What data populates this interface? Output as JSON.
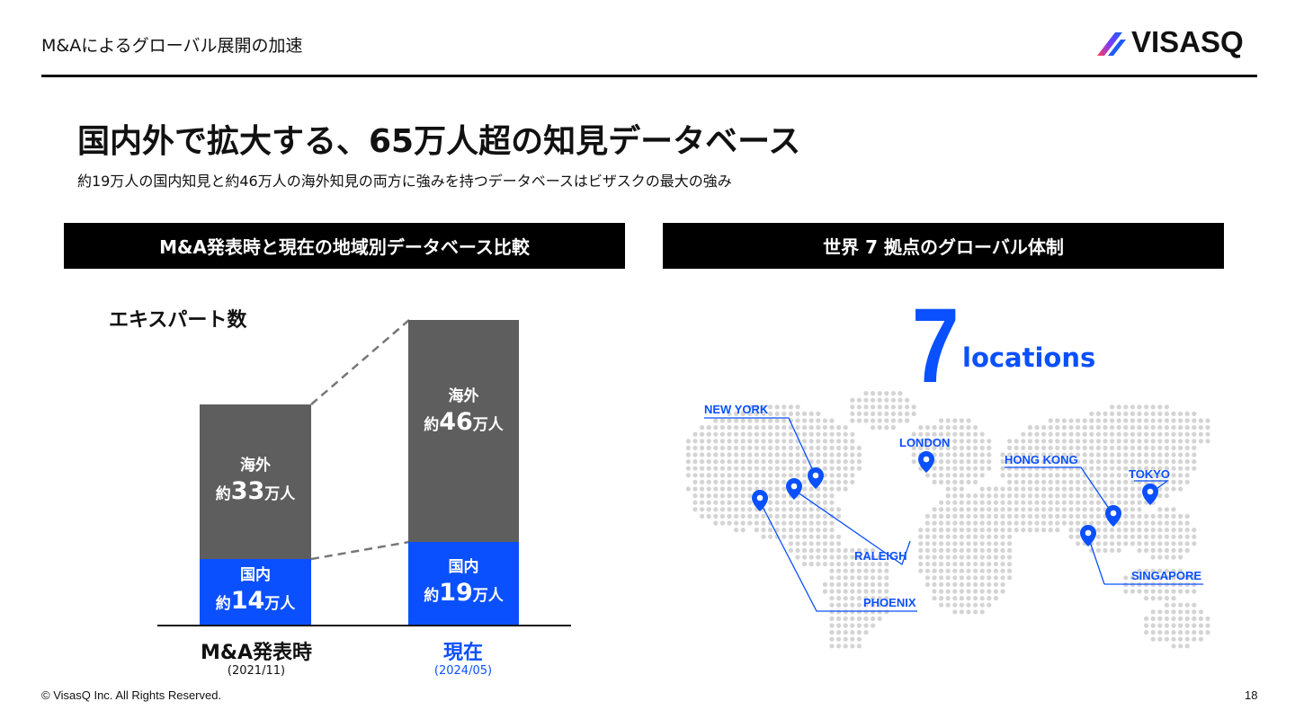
{
  "header": {
    "page_title": "M&Aによるグローバル展開の加速",
    "logo_text": "VISASQ"
  },
  "headline": "国内外で拡大する、65万人超の知見データベース",
  "subheadline": "約19万人の国内知見と約46万人の海外知見の両方に強みを持つデータベースはビザスクの最大の強み",
  "left_section": {
    "title": "M&A発表時と現在の地域別データベース比較",
    "chart_label": "エキスパート数",
    "bars": [
      {
        "category": "M&A発表時",
        "date": "(2021/11)",
        "domestic": {
          "name": "国内",
          "prefix": "約",
          "number": "14",
          "unit": "万人",
          "value": 14
        },
        "overseas": {
          "name": "海外",
          "prefix": "約",
          "number": "33",
          "unit": "万人",
          "value": 33
        }
      },
      {
        "category": "現在",
        "date": "(2024/05)",
        "domestic": {
          "name": "国内",
          "prefix": "約",
          "number": "19",
          "unit": "万人",
          "value": 19
        },
        "overseas": {
          "name": "海外",
          "prefix": "約",
          "number": "46",
          "unit": "万人",
          "value": 46
        }
      }
    ]
  },
  "chart_data": {
    "type": "bar",
    "stacked": true,
    "title": "エキスパート数",
    "categories": [
      "M&A発表時",
      "現在"
    ],
    "series": [
      {
        "name": "国内",
        "values": [
          14,
          19
        ]
      },
      {
        "name": "海外",
        "values": [
          33,
          46
        ]
      }
    ]
  },
  "right_section": {
    "title": "世界 7 拠点のグローバル体制",
    "count": "7",
    "count_label": "locations",
    "cities": [
      "NEW YORK",
      "LONDON",
      "HONG KONG",
      "TOKYO",
      "RALEIGH",
      "SINGAPORE",
      "PHOENIX"
    ]
  },
  "footer": {
    "copyright": "© VisasQ Inc. All Rights Reserved.",
    "page_number": "18"
  },
  "colors": {
    "accent_blue": "#0a50ff",
    "overseas_gray": "#5e5e5e",
    "map_dot": "#d4d4d4",
    "black": "#000000"
  }
}
